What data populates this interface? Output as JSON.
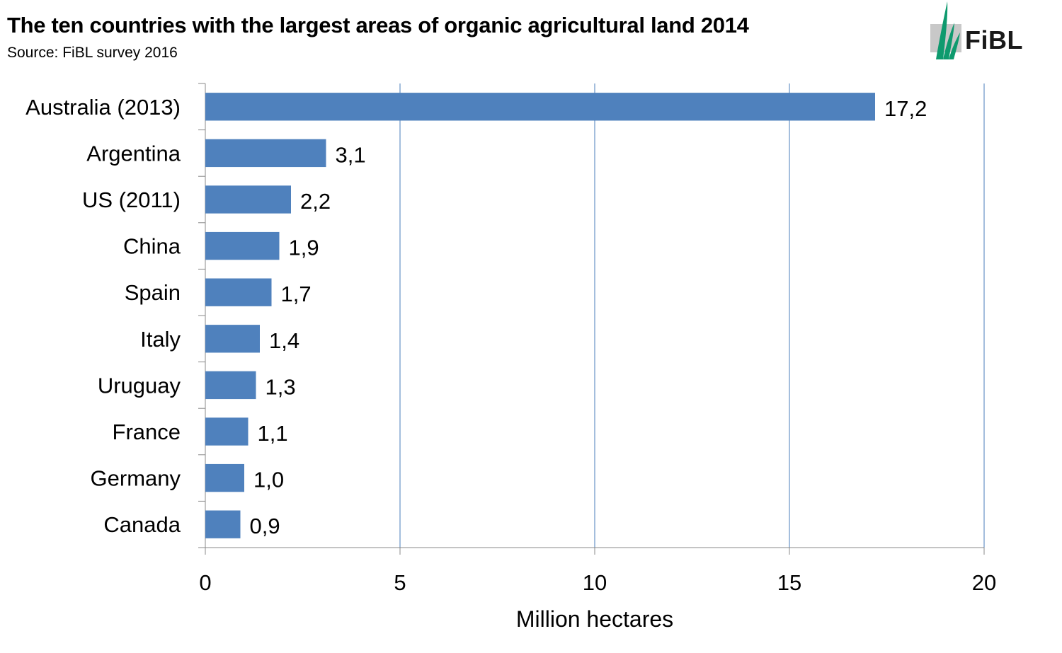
{
  "header": {
    "title": "The ten countries with the largest areas of organic agricultural land 2014",
    "subtitle": "Source: FiBL survey 2016",
    "logo_text": "FiBL"
  },
  "colors": {
    "bar": "#4F81BD",
    "grid": "#4A7EBB",
    "axis": "#888888",
    "logo_green": "#0E9A6E",
    "logo_grey": "#C8C8C8"
  },
  "chart_data": {
    "type": "bar",
    "orientation": "horizontal",
    "categories": [
      "Australia (2013)",
      "Argentina",
      "US (2011)",
      "China",
      "Spain",
      "Italy",
      "Uruguay",
      "France",
      "Germany",
      "Canada"
    ],
    "values": [
      17.2,
      3.1,
      2.2,
      1.9,
      1.7,
      1.4,
      1.3,
      1.1,
      1.0,
      0.9
    ],
    "value_labels": [
      "17,2",
      "3,1",
      "2,2",
      "1,9",
      "1,7",
      "1,4",
      "1,3",
      "1,1",
      "1,0",
      "0,9"
    ],
    "xlabel": "Million hectares",
    "xlim": [
      0,
      20
    ],
    "xticks": [
      "0",
      "5",
      "10",
      "15",
      "20"
    ],
    "xtick_values": [
      0,
      5,
      10,
      15,
      20
    ],
    "grid": "vertical"
  }
}
